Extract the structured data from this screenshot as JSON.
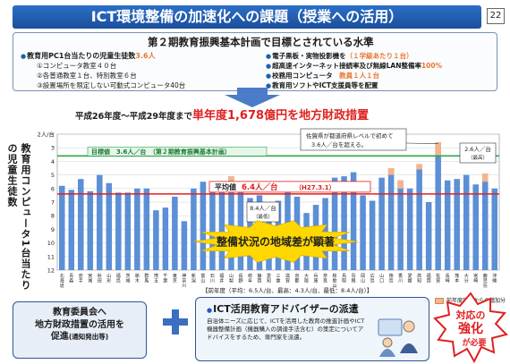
{
  "header": {
    "title": "ICT環境整備の加速化への課題（授業への活用）",
    "page_number": "22"
  },
  "plan": {
    "title": "第２期教育振興基本計画で目標とされている水準",
    "left_head_prefix": "教育用PC1台当たりの児童生徒数",
    "left_head_value": "3.6人",
    "left_items": [
      "①コンピュータ教室４０台",
      "②各普通教室１台、特別教室６台",
      "③設置場所を限定しない可動式コンピュータ40台"
    ],
    "right_items": [
      {
        "text": "電子黒板・実物投影機を（１学級あたり１台）",
        "accent": "",
        "prefix": "電子黒板・実物投影機を",
        "suffix": "（１学級あたり１台）"
      },
      {
        "prefix": "超高速インターネット接続率及び無線LAN整備率",
        "suffix": "100%"
      },
      {
        "prefix": "校務用コンピュータ",
        "suffix": "教員１人１台"
      },
      {
        "prefix": "教育用ソフトやICT支援員等を配置",
        "suffix": ""
      }
    ]
  },
  "budget": {
    "prefix": "平成26年度～平成29年度まで",
    "highlight": "単年度1,678億円を地方財政措置"
  },
  "chart_data": {
    "type": "bar",
    "ylabel": "教育用コンピュータ1台当たりの児童生徒数",
    "yticks": [
      "2人/台",
      "3",
      "4",
      "5",
      "6",
      "7",
      "8",
      "9",
      "10",
      "11",
      "12"
    ],
    "ylim": [
      2,
      12
    ],
    "y_inverted": true,
    "categories": [
      "北海道",
      "青森",
      "岩手",
      "宮城",
      "秋田",
      "山形",
      "福島",
      "茨城",
      "栃木",
      "群馬",
      "埼玉",
      "千葉",
      "東京",
      "神奈川",
      "新潟",
      "富山",
      "石川",
      "福井",
      "山梨",
      "長野",
      "岐阜",
      "静岡",
      "愛知",
      "三重",
      "滋賀",
      "京都",
      "大阪",
      "兵庫",
      "奈良",
      "和歌山",
      "鳥取",
      "島根",
      "岡山",
      "広島",
      "山口",
      "徳島",
      "香川",
      "愛媛",
      "高知",
      "福岡",
      "佐賀",
      "長崎",
      "熊本",
      "大分",
      "宮崎",
      "鹿児島",
      "沖縄"
    ],
    "series": [
      {
        "name": "",
        "values": [
          5.8,
          6.1,
          5.3,
          6.2,
          5.0,
          5.6,
          6.3,
          6.3,
          6.0,
          6.0,
          7.6,
          7.4,
          6.6,
          8.4,
          6.0,
          5.5,
          5.7,
          5.7,
          5.1,
          6.0,
          6.7,
          6.5,
          7.7,
          6.9,
          6.0,
          6.6,
          7.8,
          7.2,
          6.7,
          5.2,
          5.1,
          4.8,
          6.5,
          6.9,
          5.2,
          4.5,
          5.4,
          6.0,
          4.2,
          7.0,
          2.6,
          5.4,
          5.3,
          5.0,
          5.7,
          4.9,
          6.0
        ]
      },
      {
        "name": "前年度調査からの増加分",
        "values": [
          0,
          0,
          0,
          0,
          0,
          0,
          0,
          0,
          0,
          0,
          0,
          0,
          0,
          0,
          0,
          0,
          0,
          0,
          0.4,
          0,
          0,
          0,
          0,
          0,
          0,
          0,
          0,
          0,
          0,
          0,
          0,
          0,
          0,
          0,
          0,
          0.5,
          0.6,
          0,
          0.4,
          0,
          1.0,
          0,
          0,
          0,
          0,
          0.6,
          0
        ]
      }
    ],
    "target_line": {
      "value": 3.6,
      "label": "目標値　3.6人／台　（第２期教育振興基本計画）"
    },
    "average_line": {
      "value": 6.4,
      "label_prefix": "平均値",
      "label_value": "6.4人／台",
      "label_date": "（H27.3.1）"
    },
    "annotations": [
      {
        "text": "佐賀県が都道府県レベルで初めて3.6人／台を超える。"
      },
      {
        "text": "2.6人／台 （最高）"
      },
      {
        "text": "8.4人／台 （最低）"
      }
    ],
    "banner": "整備状況の地域差が顕著",
    "previous_year": "【前年度（平均：6.5人/台、最高：4.3人/台、最低：8.4人/台）】",
    "legend": "前年度調査からの増加分"
  },
  "bottom": {
    "board_line1": "教育委員会へ",
    "board_line2": "地方財政措置の活用を",
    "board_line3": "促進",
    "board_note": "(通知発出等)",
    "advisor_title": "ICT活用教育アドバイザーの派遣",
    "advisor_text": "自治体ニーズに応じて、ICTを活用した教育の推進計画やICT機器整備計画（機器購入の調達手法含む）の策定についてアドバイスをするため、専門家を派遣。",
    "burst_line1": "対応の",
    "burst_line2": "強化",
    "burst_line3": "が必要"
  },
  "colors": {
    "title_bar": "#1b4f9c",
    "bar": "#5b8fd6",
    "increase": "#f6b48a",
    "target": "#2ba84a",
    "average": "#e02020",
    "banner": "#ffd800"
  }
}
